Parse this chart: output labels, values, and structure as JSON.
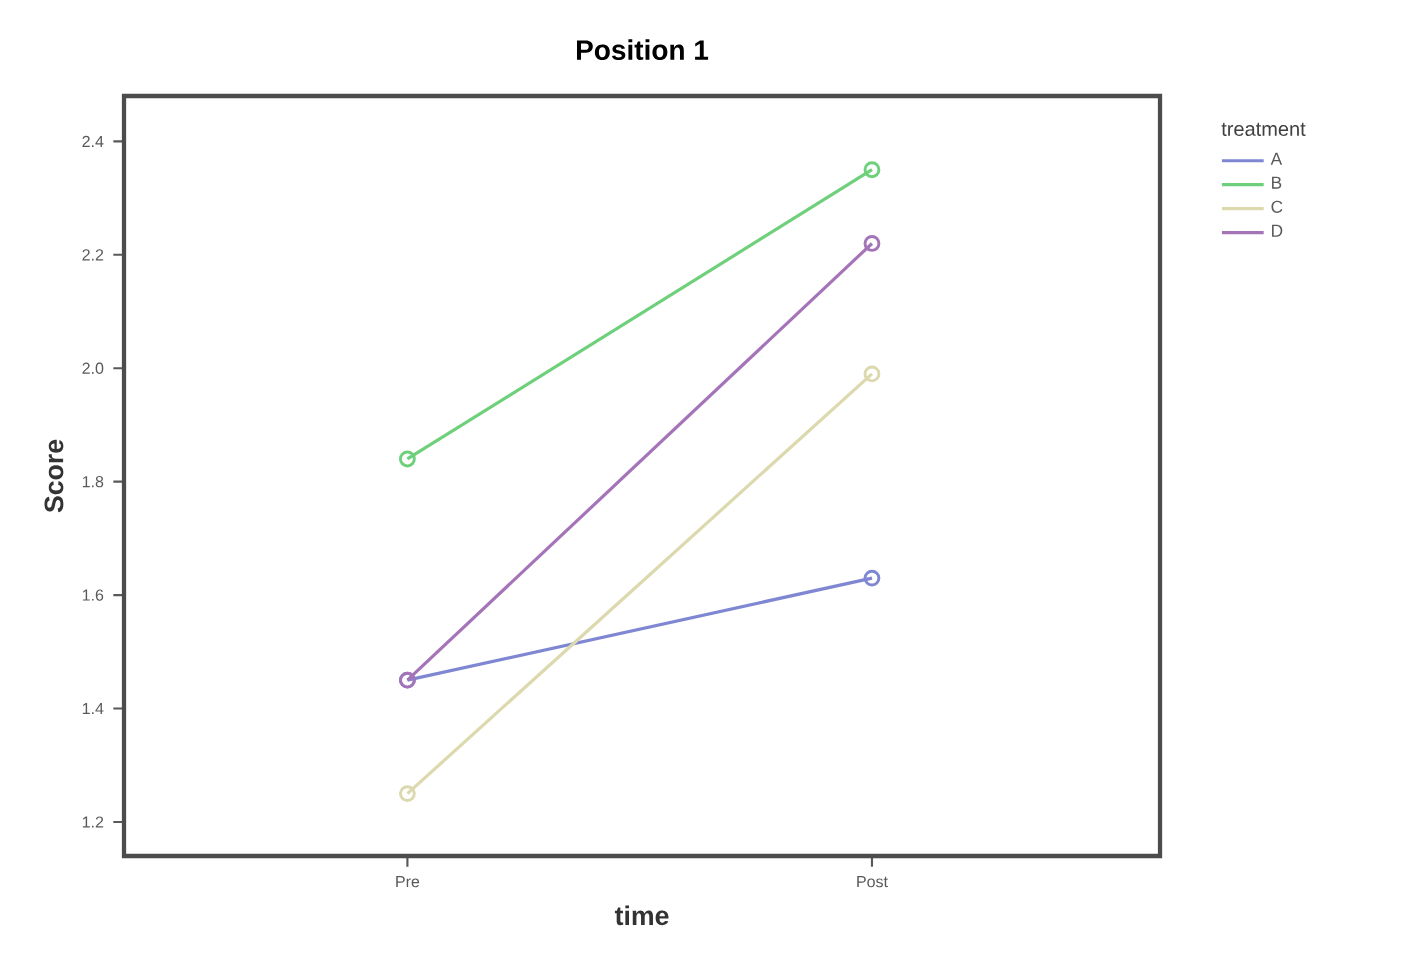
{
  "chart_data": {
    "type": "line",
    "title": "Position 1",
    "xlabel": "time",
    "ylabel": "Score",
    "legend_title": "treatment",
    "categories": [
      "Pre",
      "Post"
    ],
    "series": [
      {
        "name": "A",
        "color": "#7f87d2",
        "values": [
          1.45,
          1.63
        ]
      },
      {
        "name": "B",
        "color": "#6fd07c",
        "values": [
          1.84,
          2.35
        ]
      },
      {
        "name": "C",
        "color": "#dcd9ae",
        "values": [
          1.25,
          1.99
        ]
      },
      {
        "name": "D",
        "color": "#a574b8",
        "values": [
          1.45,
          2.22
        ]
      }
    ],
    "ylim": [
      1.14,
      2.48
    ],
    "yticks": [
      1.2,
      1.4,
      1.6,
      1.8,
      {
        "value": 2,
        "label": "2.0"
      },
      2.2,
      2.4
    ],
    "marker": "circle",
    "line_style": "solid",
    "legend": "top right",
    "grid": false
  }
}
